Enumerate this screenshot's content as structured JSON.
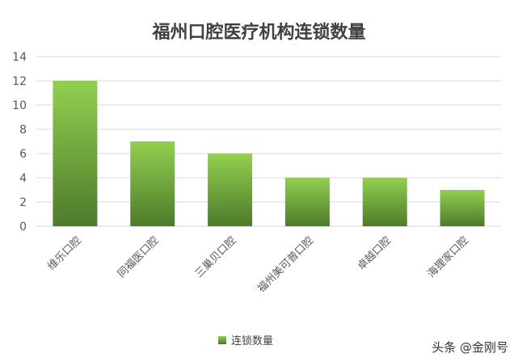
{
  "chart_data": {
    "type": "bar",
    "title": "福州口腔医疗机构连锁数量",
    "categories": [
      "维乐口腔",
      "同福医口腔",
      "三巢贝口腔",
      "福州美可普口腔",
      "卓越口腔",
      "海狸家口腔"
    ],
    "series": [
      {
        "name": "连锁数量",
        "values": [
          12,
          7,
          6,
          4,
          4,
          3
        ]
      }
    ],
    "ylim": [
      0,
      14
    ],
    "yticks": [
      0,
      2,
      4,
      6,
      8,
      10,
      12,
      14
    ],
    "grid": true,
    "legend": "bottom",
    "colors": {
      "bar_top": "#92d050",
      "bar_bottom": "#4e7a2a",
      "grid": "#d9d9d9",
      "axis_text": "#595959"
    }
  },
  "watermark": "头条 @金刚号"
}
